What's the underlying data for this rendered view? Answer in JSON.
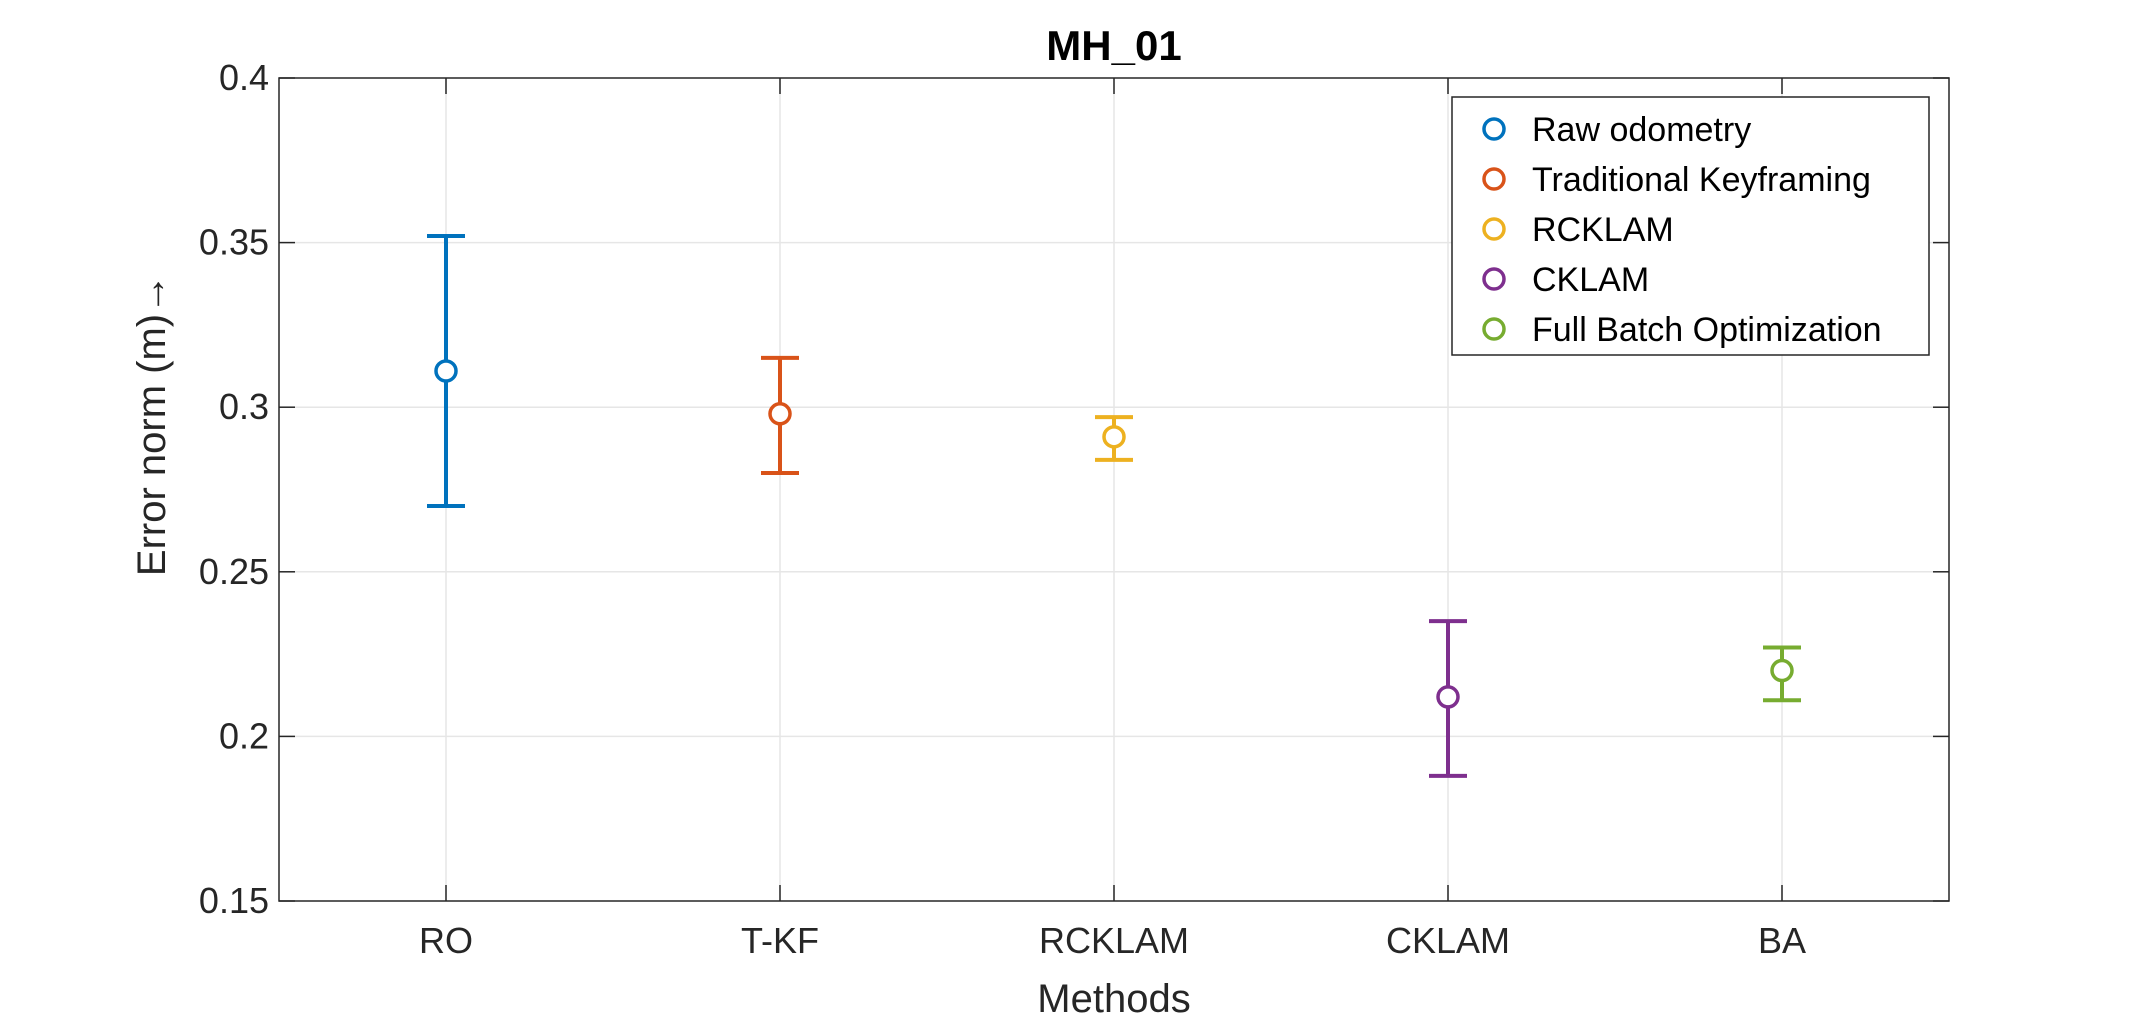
{
  "chart_data": {
    "type": "errorbar",
    "title": "MH_01",
    "xlabel": "Methods",
    "ylabel": "Error norm (m)→",
    "ylim": [
      0.15,
      0.4
    ],
    "yticks": [
      "0.15",
      "0.2",
      "0.25",
      "0.3",
      "0.35",
      "0.4"
    ],
    "grid": true,
    "legend_position": "top-right",
    "categories": [
      "RO",
      "T-KF",
      "RCKLAM",
      "CKLAM",
      "BA"
    ],
    "series": [
      {
        "name": "Raw odometry",
        "category": "RO",
        "value": 0.311,
        "lower": 0.27,
        "upper": 0.352,
        "color": "#0072BD"
      },
      {
        "name": "Traditional Keyframing",
        "category": "T-KF",
        "value": 0.298,
        "lower": 0.28,
        "upper": 0.315,
        "color": "#D95319"
      },
      {
        "name": "RCKLAM",
        "category": "RCKLAM",
        "value": 0.291,
        "lower": 0.284,
        "upper": 0.297,
        "color": "#EDB120"
      },
      {
        "name": "CKLAM",
        "category": "CKLAM",
        "value": 0.212,
        "lower": 0.188,
        "upper": 0.235,
        "color": "#7E2F8E"
      },
      {
        "name": "Full Batch Optimization",
        "category": "BA",
        "value": 0.22,
        "lower": 0.211,
        "upper": 0.227,
        "color": "#77AC30"
      }
    ]
  }
}
